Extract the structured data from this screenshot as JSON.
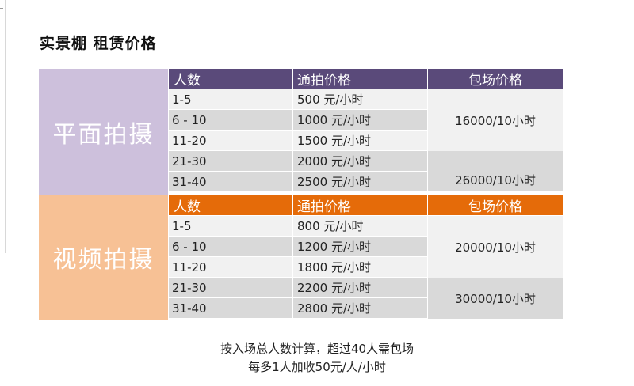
{
  "title": "实景棚  租赁价格",
  "sections": [
    {
      "label": "平面拍摄",
      "headers": [
        "人数",
        "通拍价格",
        "包场价格"
      ],
      "rows": [
        {
          "people": "1-5",
          "price": "500 元/小时"
        },
        {
          "people": "6 - 10",
          "price": "1000 元/小时"
        },
        {
          "people": "11-20",
          "price": "1500 元/小时"
        },
        {
          "people": "21-30",
          "price": "2000 元/小时"
        },
        {
          "people": "31-40",
          "price": "2500 元/小时"
        }
      ],
      "packages": [
        "16000/10小时",
        "26000/10小时"
      ]
    },
    {
      "label": "视频拍摄",
      "headers": [
        "人数",
        "通拍价格",
        "包场价格"
      ],
      "rows": [
        {
          "people": "1-5",
          "price": "800 元/小时"
        },
        {
          "people": "6 - 10",
          "price": "1200 元/小时"
        },
        {
          "people": "11-20",
          "price": "1800 元/小时"
        },
        {
          "people": "21-30",
          "price": "2200 元/小时"
        },
        {
          "people": "31-40",
          "price": "2800 元/小时"
        }
      ],
      "packages": [
        "20000/10小时",
        "30000/10小时"
      ]
    }
  ],
  "notes": [
    "按入场总人数计算，超过40人需包场",
    "每多1人加收50元/人/小时"
  ],
  "colors": {
    "photo_label_bg": "#cdc0dc",
    "video_label_bg": "#f7c195",
    "photo_header_bg": "#5a4a7a",
    "video_header_bg": "#e56b09",
    "row_light": "#f1f1f1",
    "row_dark": "#d9d9d9"
  }
}
